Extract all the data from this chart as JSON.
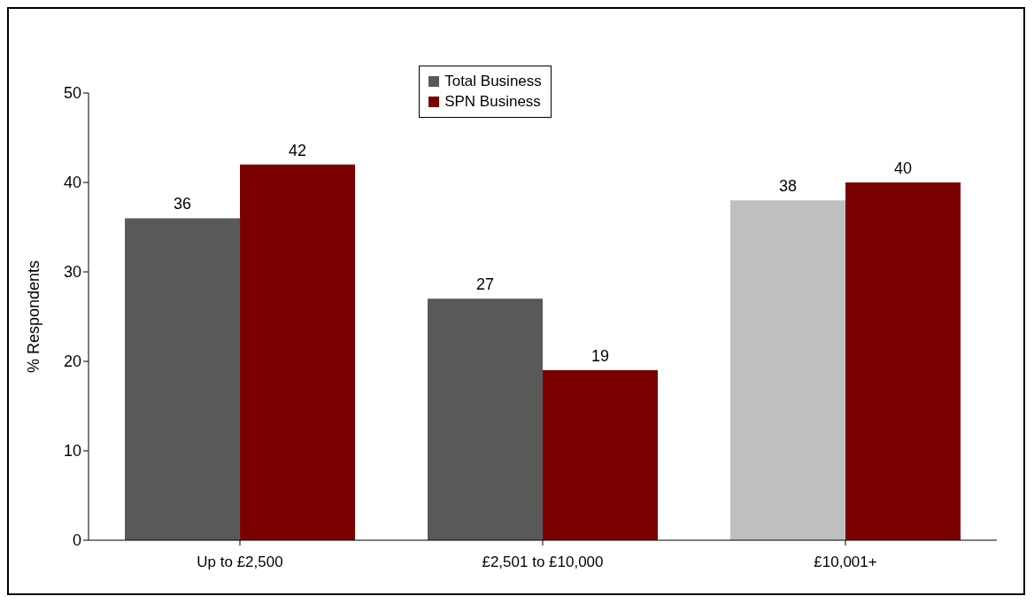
{
  "chart_data": {
    "type": "bar",
    "ylabel": "% Respondents",
    "categories": [
      "Up to £2,500",
      "£2,501 to £10,000",
      "£10,001+"
    ],
    "series": [
      {
        "name": "Total Business",
        "color": "#595959",
        "colors": [
          "#595959",
          "#595959",
          "#bfbfbf"
        ],
        "values": [
          36,
          27,
          38
        ]
      },
      {
        "name": "SPN Business",
        "color": "#7a0000",
        "colors": [
          "#7a0000",
          "#7a0000",
          "#7a0000"
        ],
        "values": [
          42,
          19,
          40
        ]
      }
    ],
    "ylim": [
      0,
      50
    ],
    "yticks": [
      0,
      10,
      20,
      30,
      40,
      50
    ],
    "data_labels": true,
    "legend": "top",
    "grid": false
  }
}
